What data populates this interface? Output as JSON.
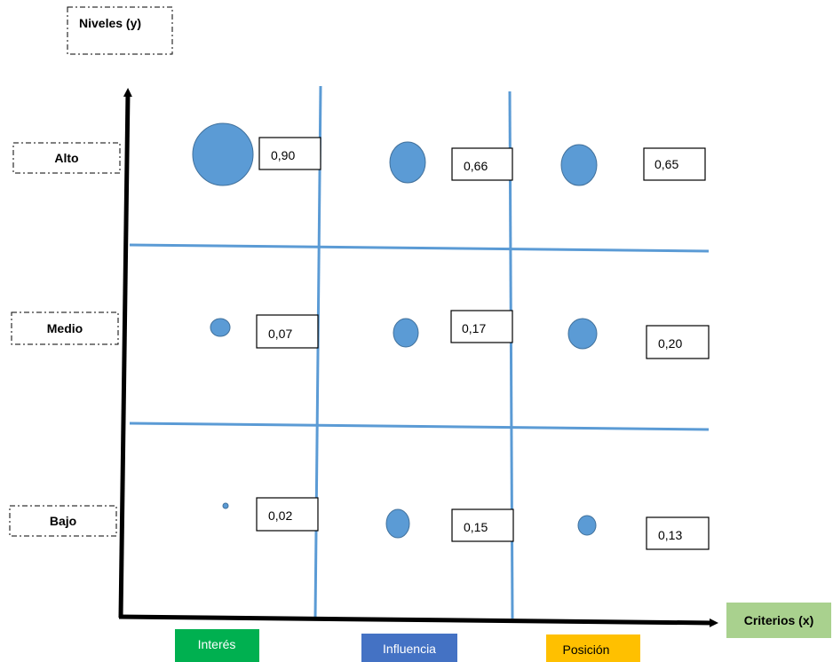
{
  "y_axis_title": "Niveles (y)",
  "x_axis_title": "Criterios (x)",
  "levels": [
    {
      "label": "Alto"
    },
    {
      "label": "Medio"
    },
    {
      "label": "Bajo"
    }
  ],
  "criteria": [
    {
      "label": "Interés",
      "color": "#00b050",
      "text_color": "#ffffff"
    },
    {
      "label": "Influencia",
      "color": "#4472c4",
      "text_color": "#ffffff"
    },
    {
      "label": "Posición",
      "color": "#ffc000",
      "text_color": "#000000"
    }
  ],
  "colors": {
    "bubble": "#5b9bd5",
    "bubble_edge": "#41719c",
    "grid": "#5b9bd5",
    "x_title_fill": "#a9d18e",
    "axis": "#000000"
  },
  "chart_data": {
    "type": "scatter",
    "title": "",
    "xlabel": "Criterios (x)",
    "ylabel": "Niveles (y)",
    "x_categories": [
      "Interés",
      "Influencia",
      "Posición"
    ],
    "y_categories": [
      "Alto",
      "Medio",
      "Bajo"
    ],
    "series": [
      {
        "values": [
          {
            "x": "Interés",
            "y": "Alto",
            "value": "0,90"
          },
          {
            "x": "Influencia",
            "y": "Alto",
            "value": "0,66"
          },
          {
            "x": "Posición",
            "y": "Alto",
            "value": "0,65"
          },
          {
            "x": "Interés",
            "y": "Medio",
            "value": "0,07"
          },
          {
            "x": "Influencia",
            "y": "Medio",
            "value": "0,17"
          },
          {
            "x": "Posición",
            "y": "Medio",
            "value": "0,20"
          },
          {
            "x": "Interés",
            "y": "Bajo",
            "value": "0,02"
          },
          {
            "x": "Influencia",
            "y": "Bajo",
            "value": "0,15"
          },
          {
            "x": "Posición",
            "y": "Bajo",
            "value": "0,13"
          }
        ]
      }
    ],
    "grid": true,
    "legend": "none"
  }
}
